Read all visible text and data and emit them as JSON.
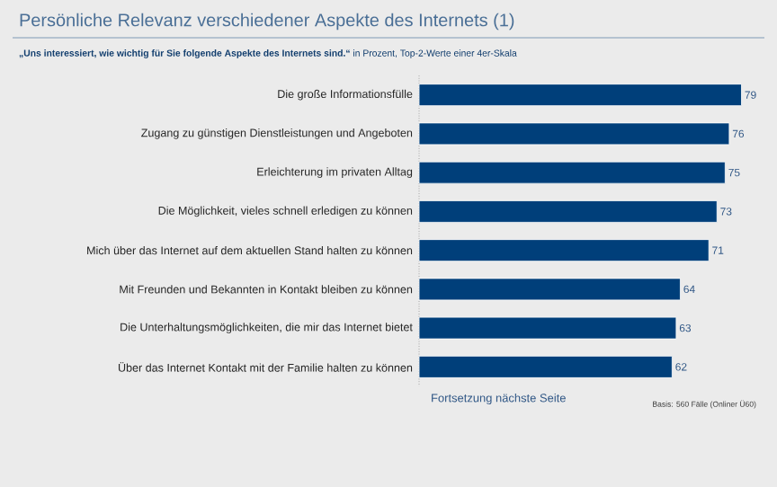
{
  "chart_data": {
    "type": "bar",
    "orientation": "horizontal",
    "title": "Persönliche Relevanz verschiedener Aspekte des Internets (1)",
    "subtitle": "**„Uns interessiert, wie wichtig für Sie folgende Aspekte des Internets sind.“** in Prozent, Top-2-Werte einer 4er-Skala",
    "categories": [
      "Die große Informationsfülle",
      "Zugang zu günstigen Dienstleistungen und Angeboten",
      "Erleichterung im privaten Alltag",
      "Die Möglichkeit, vieles schnell erledigen zu können",
      "Mich über das Internet auf dem aktuellen Stand halten zu können",
      "Mit Freunden und Bekannten in Kontakt bleiben zu können",
      "Die Unterhaltungsmöglichkeiten, die mir das Internet bietet",
      "Über das Internet Kontakt mit der Familie halten zu können"
    ],
    "values": [
      79,
      76,
      75,
      73,
      71,
      64,
      63,
      62
    ],
    "color": "#003f7a",
    "data_labels": true,
    "annotations": [
      "Fortsetzung nächste Seite",
      "Basis: 560 Fälle (Onliner Ü60)"
    ]
  }
}
